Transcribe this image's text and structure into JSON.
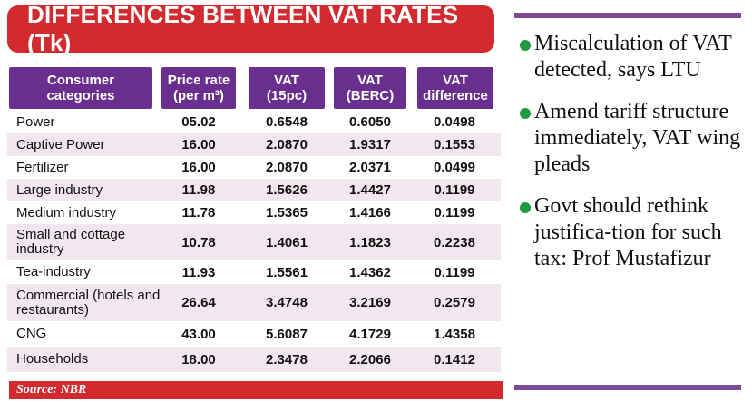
{
  "title": "DIFFERENCES BETWEEN VAT RATES (Tk)",
  "columns": [
    [
      "Consumer",
      "categories"
    ],
    [
      "Price rate",
      "(per m³)"
    ],
    [
      "VAT",
      "(15pc)"
    ],
    [
      "VAT",
      "(BERC)"
    ],
    [
      "VAT",
      "difference"
    ]
  ],
  "rows": [
    {
      "category": "Power",
      "price": "05.02",
      "vat15": "0.6548",
      "vat_berc": "0.6050",
      "diff": "0.0498"
    },
    {
      "category": "Captive Power",
      "price": "16.00",
      "vat15": "2.0870",
      "vat_berc": "1.9317",
      "diff": "0.1553"
    },
    {
      "category": "Fertilizer",
      "price": "16.00",
      "vat15": "2.0870",
      "vat_berc": "2.0371",
      "diff": "0.0499"
    },
    {
      "category": "Large industry",
      "price": "11.98",
      "vat15": "1.5626",
      "vat_berc": "1.4427",
      "diff": "0.1199"
    },
    {
      "category": "Medium industry",
      "price": "11.78",
      "vat15": "1.5365",
      "vat_berc": "1.4166",
      "diff": "0.1199"
    },
    {
      "category": "Small and cottage industry",
      "price": "10.78",
      "vat15": "1.4061",
      "vat_berc": "1.1823",
      "diff": "0.2238"
    },
    {
      "category": "Tea-industry",
      "price": "11.93",
      "vat15": "1.5561",
      "vat_berc": "1.4362",
      "diff": "0.1199"
    },
    {
      "category": "Commercial (hotels and restaurants)",
      "price": "26.64",
      "vat15": "3.4748",
      "vat_berc": "3.2169",
      "diff": "0.2579"
    },
    {
      "category": "CNG",
      "price": "43.00",
      "vat15": "5.6087",
      "vat_berc": "4.1729",
      "diff": "1.4358"
    },
    {
      "category": "Households",
      "price": "18.00",
      "vat15": "2.3478",
      "vat_berc": "2.2066",
      "diff": "0.1412"
    }
  ],
  "source": "Source: NBR",
  "bullets": [
    "Miscalculation of VAT detected, says LTU",
    "Amend tariff structure immediately, VAT wing pleads",
    "Govt should rethink justifica-tion for such tax: Prof Mustafizur"
  ],
  "colors": {
    "title_bg": "#d12a2f",
    "header_bg": "#6a2f8e",
    "row_alt": "#f2e7ef",
    "bullet": "#1f9b3f"
  }
}
